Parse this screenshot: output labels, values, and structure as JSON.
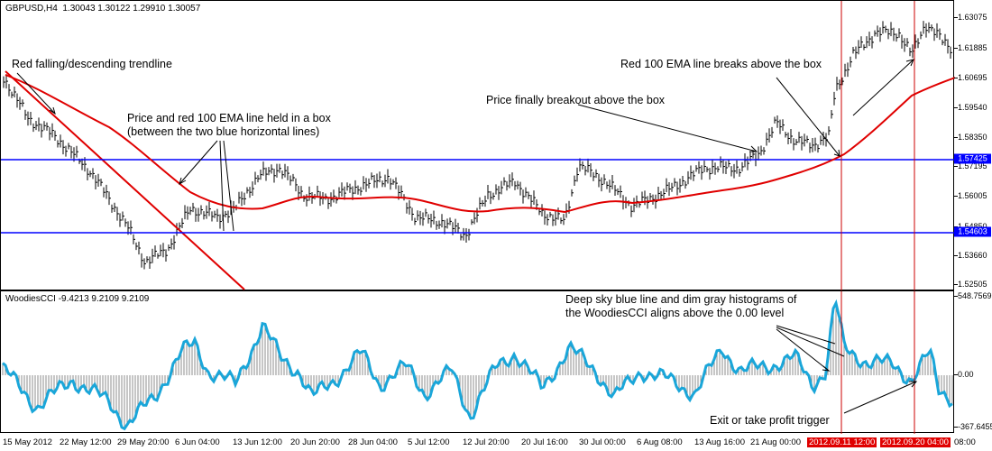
{
  "price_header": {
    "symbol": "GBPUSD,H4",
    "ohlc": "1.30043 1.30122 1.29910 1.30057"
  },
  "cci_header": "WoodiesCCI -9.4213 9.2109 9.2109",
  "price_axis": [
    "1.63075",
    "1.61885",
    "1.60695",
    "1.59540",
    "1.58350",
    "1.57195",
    "1.56005",
    "1.54850",
    "1.53660",
    "1.52505"
  ],
  "price_tags": [
    "1.57425",
    "1.54603"
  ],
  "cci_axis": [
    "548.7569",
    "0.00",
    "-367.6455"
  ],
  "time_axis": [
    "15 May 2012",
    "22 May 12:00",
    "29 May 20:00",
    "6 Jun 04:00",
    "13 Jun 12:00",
    "20 Jun 20:00",
    "28 Jun 04:00",
    "5 Jul 12:00",
    "12 Jul 20:00",
    "20 Jul 16:00",
    "30 Jul 00:00",
    "6 Aug 08:00",
    "13 Aug 16:00",
    "21 Aug 00:00",
    "2012.09.11 12:00",
    "2012.09.20 04:00",
    "08:00"
  ],
  "annotations": {
    "trendline_note": "Red falling/descending trendline",
    "box_note_line1": "Price and red 100 EMA line held in a box",
    "box_note_line2": "(between the two blue horizontal lines)",
    "breakout_note": "Price finally breakout above the box",
    "ema_break_note": "Red 100 EMA line breaks above the box",
    "cci_note_line1": "Deep sky blue line and dim gray histograms of",
    "cci_note_line2": "the WoodiesCCI aligns above the 0.00 level",
    "exit_note": "Exit or take profit trigger"
  },
  "colors": {
    "ema": "#e00000",
    "box_lines": "#0000ff",
    "vertical_markers": "#cc0000",
    "cci_line": "#1aa6d9",
    "histogram": "#8c8c8c"
  }
}
